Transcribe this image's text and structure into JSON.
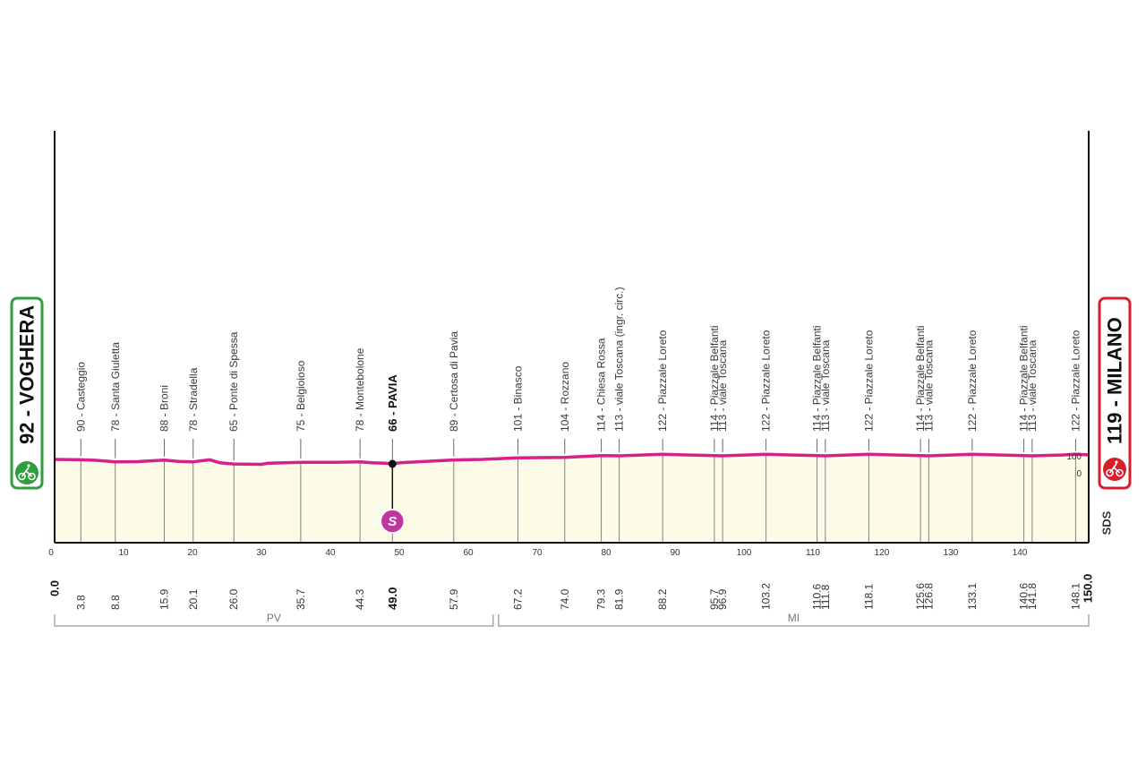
{
  "chart_data": {
    "type": "area",
    "xlim": [
      0,
      150
    ],
    "distance_ticks": [
      0,
      10,
      20,
      30,
      40,
      50,
      60,
      70,
      80,
      90,
      100,
      110,
      120,
      130,
      140,
      150
    ],
    "elevation_labels": [
      "100",
      "0"
    ],
    "elevation_profile": [
      [
        0,
        92
      ],
      [
        3.8,
        90
      ],
      [
        6,
        87
      ],
      [
        8.8,
        78
      ],
      [
        12,
        79
      ],
      [
        15.9,
        88
      ],
      [
        18,
        80
      ],
      [
        20.1,
        78
      ],
      [
        22.5,
        90
      ],
      [
        24,
        72
      ],
      [
        26.0,
        65
      ],
      [
        30,
        63
      ],
      [
        31,
        70
      ],
      [
        35.7,
        75
      ],
      [
        40,
        75
      ],
      [
        44.3,
        78
      ],
      [
        46,
        72
      ],
      [
        48,
        70
      ],
      [
        49.0,
        66
      ],
      [
        50,
        72
      ],
      [
        57.9,
        89
      ],
      [
        62,
        92
      ],
      [
        67.2,
        101
      ],
      [
        74.0,
        104
      ],
      [
        79.3,
        114
      ],
      [
        81.9,
        113
      ],
      [
        88.2,
        122
      ],
      [
        95.7,
        114
      ],
      [
        96.9,
        113
      ],
      [
        103.2,
        122
      ],
      [
        110.6,
        114
      ],
      [
        111.8,
        113
      ],
      [
        118.1,
        122
      ],
      [
        125.6,
        114
      ],
      [
        126.8,
        113
      ],
      [
        133.1,
        122
      ],
      [
        140.6,
        114
      ],
      [
        141.8,
        113
      ],
      [
        146,
        118
      ],
      [
        148.1,
        122
      ],
      [
        150,
        119
      ]
    ],
    "waypoints": [
      {
        "km": "3.8",
        "label": "90 - Casteggio"
      },
      {
        "km": "8.8",
        "label": "78 - Santa Giuletta"
      },
      {
        "km": "15.9",
        "label": "88 - Broni"
      },
      {
        "km": "20.1",
        "label": "78 - Stradella"
      },
      {
        "km": "26.0",
        "label": "65 - Ponte di Spessa"
      },
      {
        "km": "35.7",
        "label": "75 - Belgioioso"
      },
      {
        "km": "44.3",
        "label": "78 - Montebolone"
      },
      {
        "km": "49.0",
        "label": "66 - PAVIA",
        "bold": true
      },
      {
        "km": "57.9",
        "label": "89 - Certosa di Pavia"
      },
      {
        "km": "67.2",
        "label": "101 - Binasco"
      },
      {
        "km": "74.0",
        "label": "104 - Rozzano"
      },
      {
        "km": "79.3",
        "label": "114 - Chiesa Rossa"
      },
      {
        "km": "81.9",
        "label": "113 - viale Toscana (ingr. circ.)"
      },
      {
        "km": "88.2",
        "label": "122 - Piazzale Loreto"
      },
      {
        "km": "95.7",
        "label": "114 - Piazzale Belfanti"
      },
      {
        "km": "96.9",
        "label": "113 - viale Toscana"
      },
      {
        "km": "103.2",
        "label": "122 - Piazzale Loreto"
      },
      {
        "km": "110.6",
        "label": "114 - Piazzale Belfanti"
      },
      {
        "km": "111.8",
        "label": "113 - viale Toscana"
      },
      {
        "km": "118.1",
        "label": "122 - Piazzale Loreto"
      },
      {
        "km": "125.6",
        "label": "114 - Piazzale Belfanti"
      },
      {
        "km": "126.8",
        "label": "113 - viale Toscana"
      },
      {
        "km": "133.1",
        "label": "122 - Piazzale Loreto"
      },
      {
        "km": "140.6",
        "label": "114 - Piazzale Belfanti"
      },
      {
        "km": "141.8",
        "label": "113 - viale Toscana"
      },
      {
        "km": "148.1",
        "label": "122 - Piazzale Loreto"
      }
    ],
    "start": {
      "km": "0.0",
      "label": "92 - VOGHERA",
      "color": "#2e9e3e"
    },
    "finish": {
      "km": "150.0",
      "label": "119 - MILANO",
      "color": "#d81e2a"
    },
    "intermediate_sprint": {
      "km": 49.0,
      "symbol": "S",
      "color": "#c0359e"
    },
    "regions": [
      {
        "name": "PV",
        "from": 0,
        "to": 64
      },
      {
        "name": "MI",
        "from": 64,
        "to": 150
      }
    ],
    "sponsor": "SDS",
    "colors": {
      "profile_line": "#d6218b",
      "profile_fill": "#fbfbe8",
      "axis": "#111111"
    }
  }
}
